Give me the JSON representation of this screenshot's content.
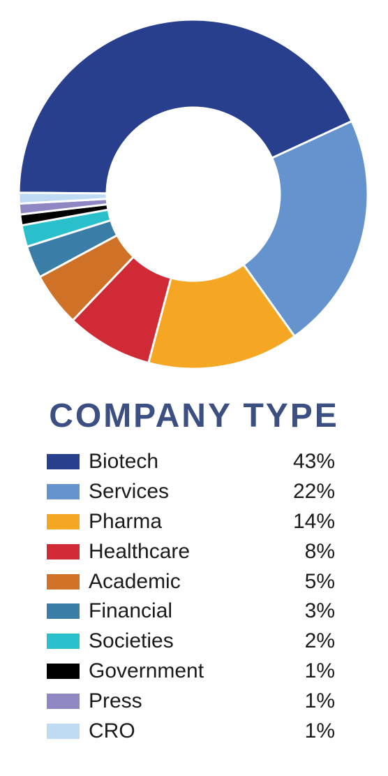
{
  "chart_data": {
    "type": "pie",
    "title": "COMPANY TYPE",
    "categories": [
      "Biotech",
      "Services",
      "Pharma",
      "Healthcare",
      "Academic",
      "Financial",
      "Societies",
      "Government",
      "Press",
      "CRO"
    ],
    "values": [
      43,
      22,
      14,
      8,
      5,
      3,
      2,
      1,
      1,
      1
    ],
    "value_labels": [
      "43%",
      "22%",
      "14%",
      "8%",
      "5%",
      "3%",
      "2%",
      "1%",
      "1%",
      "1%"
    ],
    "unit": "%",
    "colors": [
      "#273f8d",
      "#6593cd",
      "#f5a623",
      "#cf2a35",
      "#cf7227",
      "#3a7ea7",
      "#2ac0cb",
      "#000000",
      "#8e87c4",
      "#bfdaf3"
    ],
    "donut": true,
    "legend_placement": "bottom"
  }
}
